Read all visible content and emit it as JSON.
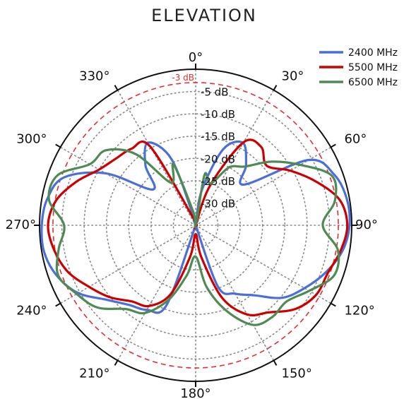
{
  "chart_data": {
    "type": "polar-line",
    "title": "ELEVATION",
    "angle_unit": "degrees",
    "angle_zero": "top",
    "angle_direction": "clockwise",
    "angle_ticks": [
      {
        "deg": 0,
        "label": "0°"
      },
      {
        "deg": 30,
        "label": "30°"
      },
      {
        "deg": 60,
        "label": "60°"
      },
      {
        "deg": 90,
        "label": "90°"
      },
      {
        "deg": 120,
        "label": "120°"
      },
      {
        "deg": 150,
        "label": "150°"
      },
      {
        "deg": 180,
        "label": "180°"
      },
      {
        "deg": 210,
        "label": "210°"
      },
      {
        "deg": 240,
        "label": "240°"
      },
      {
        "deg": 270,
        "label": "270°"
      },
      {
        "deg": 300,
        "label": "300°"
      },
      {
        "deg": 330,
        "label": "330°"
      }
    ],
    "r_unit": "dB",
    "r_range": [
      -35,
      0
    ],
    "r_ticks": [
      {
        "value": -5,
        "label": "-5 dB"
      },
      {
        "value": -10,
        "label": "-10 dB"
      },
      {
        "value": -15,
        "label": "-15 dB"
      },
      {
        "value": -20,
        "label": "-20 dB"
      },
      {
        "value": -25,
        "label": "-25 dB"
      },
      {
        "value": -30,
        "label": "-30 dB"
      }
    ],
    "reference_ring": {
      "value": -3,
      "label": "-3 dB",
      "color": "#e03030",
      "style": "dashed"
    },
    "grid": true,
    "legend_position": "top-right",
    "series": [
      {
        "name": "2400 MHz",
        "color": "#4a6fd8",
        "angles": [
          0,
          10,
          20,
          30,
          40,
          50,
          60,
          70,
          80,
          90,
          100,
          110,
          120,
          130,
          140,
          150,
          160,
          170,
          180,
          190,
          200,
          210,
          220,
          230,
          240,
          250,
          260,
          270,
          280,
          290,
          300,
          310,
          320,
          330,
          340,
          350
        ],
        "values": [
          -35,
          -27,
          -16.8,
          -13.7,
          -17.4,
          -20.8,
          -5.7,
          -1.9,
          -0.6,
          -0.5,
          -1.6,
          -4,
          -6.8,
          -9.7,
          -14.5,
          -17.3,
          -20.3,
          -35,
          -35,
          -35,
          -16,
          -13.1,
          -11.7,
          -9,
          -4.6,
          -1.9,
          -0.5,
          -0.5,
          -1.2,
          -3.6,
          -11.7,
          -22.5,
          -17.5,
          -13.6,
          -19.3,
          -34
        ]
      },
      {
        "name": "5500 MHz",
        "color": "#cc0000",
        "angles": [
          0,
          10,
          20,
          30,
          40,
          50,
          60,
          70,
          80,
          90,
          100,
          110,
          120,
          130,
          140,
          150,
          160,
          170,
          180,
          190,
          200,
          210,
          220,
          230,
          240,
          250,
          260,
          270,
          280,
          290,
          300,
          310,
          320,
          330,
          340,
          350
        ],
        "values": [
          -35,
          -35,
          -25.5,
          -13.5,
          -12.1,
          -14.2,
          -10.5,
          -6.3,
          -2.2,
          -1,
          -2,
          -3.5,
          -3.8,
          -5.8,
          -9.5,
          -11.9,
          -17.7,
          -27.8,
          -33,
          -27.8,
          -18.5,
          -14.1,
          -12.7,
          -9.9,
          -7.4,
          -4.5,
          -2.8,
          -1.9,
          -3.2,
          -6.5,
          -10,
          -11.7,
          -12.6,
          -14.6,
          -33,
          -35
        ]
      },
      {
        "name": "6500 MHz",
        "color": "#4f8a55",
        "angles": [
          0,
          10,
          20,
          30,
          40,
          50,
          60,
          70,
          80,
          90,
          100,
          110,
          120,
          130,
          140,
          150,
          160,
          170,
          180,
          190,
          200,
          210,
          220,
          230,
          240,
          250,
          260,
          270,
          280,
          290,
          300,
          310,
          320,
          330,
          340,
          350
        ],
        "values": [
          -35,
          -23.5,
          -25,
          -20,
          -17.8,
          -12.8,
          -7.9,
          -2.5,
          -3.3,
          -6.5,
          -2.6,
          -2,
          -5.6,
          -8.4,
          -8.2,
          -9.2,
          -14.5,
          -21,
          -28,
          -23.6,
          -17.2,
          -12.3,
          -10.5,
          -6.3,
          -4.2,
          -2.2,
          -3.8,
          -5.5,
          -1.6,
          -2.1,
          -7.6,
          -8.8,
          -14.2,
          -24,
          -20.5,
          -32
        ]
      }
    ]
  }
}
